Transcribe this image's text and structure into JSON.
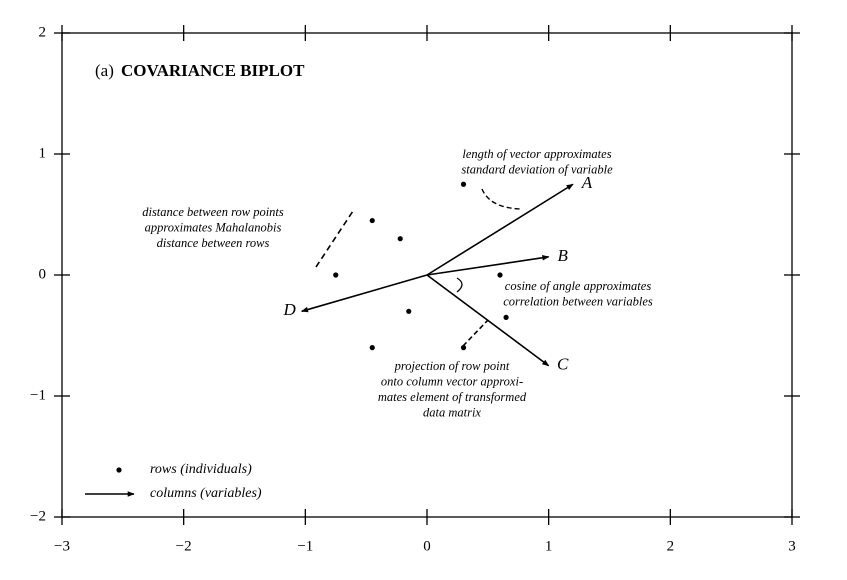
{
  "chart_data": {
    "type": "biplot",
    "title_prefix": "(a)",
    "title": "COVARIANCE BIPLOT",
    "xlim": [
      -3,
      3
    ],
    "ylim": [
      -2,
      2
    ],
    "xticks": [
      {
        "value": -3,
        "label": "−3"
      },
      {
        "value": -2,
        "label": "−2"
      },
      {
        "value": -1,
        "label": "−1"
      },
      0,
      1,
      2,
      3
    ],
    "yticks": [
      {
        "value": -2,
        "label": "−2"
      },
      {
        "value": -1,
        "label": "−1"
      },
      0,
      1,
      2
    ],
    "series": [
      {
        "name": "rows (individuals)",
        "color": "#000000",
        "x": [
          0.3,
          -0.45,
          -0.22,
          -0.75,
          0.6,
          -0.15,
          0.65,
          -0.45,
          0.3
        ],
        "y": [
          0.75,
          0.45,
          0.3,
          0.0,
          0.0,
          -0.3,
          -0.35,
          -0.6,
          -0.6
        ]
      },
      {
        "name": "columns (variables)",
        "color": "#000000",
        "labels": [
          "A",
          "B",
          "C",
          "D"
        ],
        "x": [
          1.2,
          1.0,
          1.0,
          -1.03
        ],
        "y": [
          0.75,
          0.15,
          -0.75,
          -0.3
        ]
      }
    ],
    "annotations": [
      {
        "lines": [
          "length of vector approximates",
          "standard deviation of variable"
        ]
      },
      {
        "lines": [
          "distance between row points",
          "approximates Mahalanobis",
          "distance between rows"
        ]
      },
      {
        "lines": [
          "cosine of angle approximates",
          "correlation between variables"
        ]
      },
      {
        "lines": [
          "projection of row point",
          "onto column vector approxi-",
          "mates element of transformed",
          "data matrix"
        ]
      }
    ]
  }
}
